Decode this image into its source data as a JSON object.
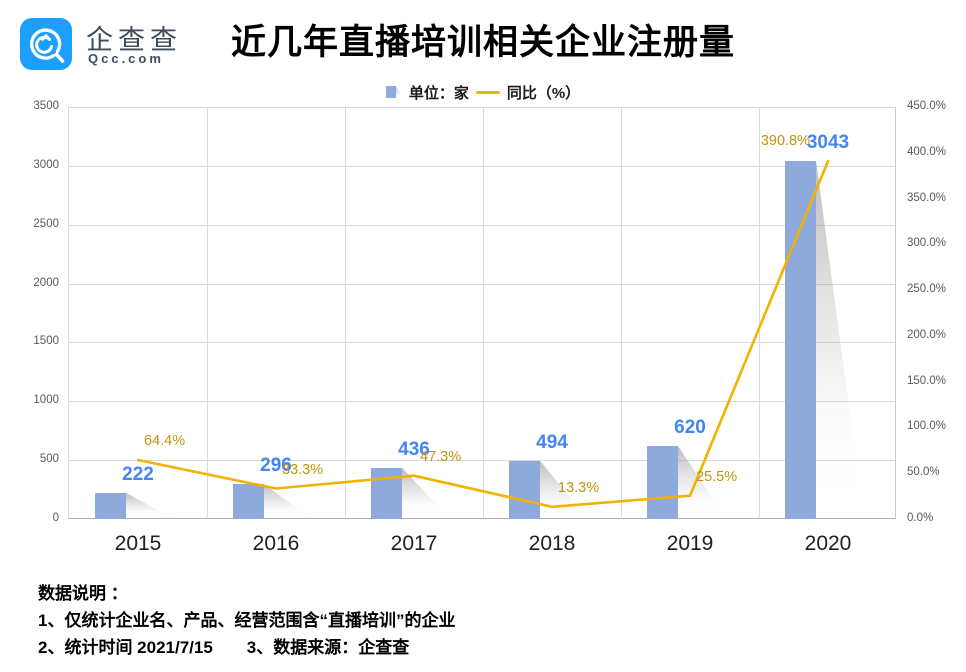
{
  "brand": {
    "name": "企查查",
    "domain": "Qcc.com"
  },
  "title": "近几年直播培训相关企业注册量",
  "legend": {
    "bar_label": "单位：家",
    "line_label": "同比（%）"
  },
  "chart_data": {
    "type": "combo-bar-line",
    "title": "近几年直播培训相关企业注册量",
    "categories": [
      "2015",
      "2016",
      "2017",
      "2018",
      "2019",
      "2020"
    ],
    "series": [
      {
        "name": "单位：家",
        "type": "bar",
        "axis": "left",
        "values": [
          222,
          296,
          436,
          494,
          620,
          3043
        ],
        "labels": [
          "222",
          "296",
          "436",
          "494",
          "620",
          "3043"
        ],
        "color": "#8EA9DB"
      },
      {
        "name": "同比（%）",
        "type": "line",
        "axis": "right",
        "values": [
          64.4,
          33.3,
          47.3,
          13.3,
          25.5,
          390.8
        ],
        "labels": [
          "64.4%",
          "33.3%",
          "47.3%",
          "13.3%",
          "25.5%",
          "390.8%"
        ],
        "color": "#F1B300"
      }
    ],
    "left_axis": {
      "min": 0,
      "max": 3500,
      "ticks": [
        "0",
        "500",
        "1000",
        "1500",
        "2000",
        "2500",
        "3000",
        "3500"
      ]
    },
    "right_axis": {
      "min": 0,
      "max": 450,
      "ticks": [
        "0.0%",
        "50.0%",
        "100.0%",
        "150.0%",
        "200.0%",
        "250.0%",
        "300.0%",
        "350.0%",
        "400.0%",
        "450.0%"
      ]
    },
    "grid": true,
    "legend_position": "top"
  },
  "notes": {
    "heading": "数据说明 ：",
    "line1": "1、仅统计企业名、产品、经营范围含“直播培训”的企业",
    "line2": "2、统计时间 2021/7/15　　3、数据来源：企查查"
  },
  "colors": {
    "bar": "#8EA9DB",
    "line": "#F1B300",
    "value_label": "#4285F4",
    "pct_label": "#C0950B",
    "axis_text": "#595959",
    "grid": "#D9D9D9",
    "brand_blue": "#1C9FFF",
    "title_text": "#000000"
  }
}
